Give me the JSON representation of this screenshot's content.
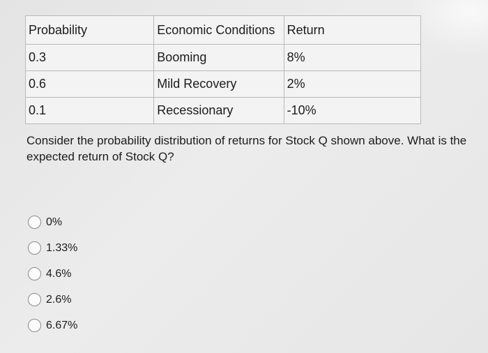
{
  "table": {
    "headers": [
      "Probability",
      "Economic Conditions",
      "Return"
    ],
    "rows": [
      [
        "0.3",
        "Booming",
        "8%"
      ],
      [
        "0.6",
        "Mild Recovery",
        "2%"
      ],
      [
        "0.1",
        "Recessionary",
        "-10%"
      ]
    ]
  },
  "question": {
    "text": "Consider the probability distribution of returns for Stock Q shown above. What is the expected return of Stock Q?"
  },
  "options": [
    "0%",
    "1.33%",
    "4.6%",
    "2.6%",
    "6.67%"
  ],
  "selected_option": null
}
